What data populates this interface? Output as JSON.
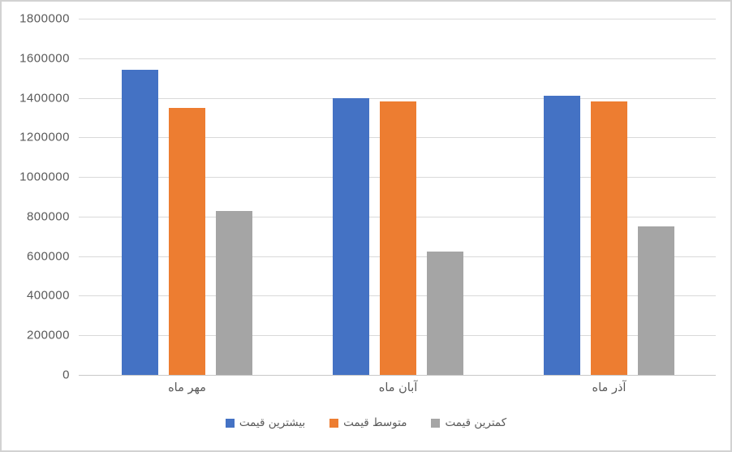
{
  "chart_data": {
    "type": "bar",
    "title": "",
    "categories": [
      "مهر ماه",
      "آبان ماه",
      "آذر ماه"
    ],
    "series": [
      {
        "name": "بیشترین قیمت",
        "color": "#4472C4",
        "values": [
          1540000,
          1400000,
          1410000
        ]
      },
      {
        "name": "متوسط قیمت",
        "color": "#ED7D31",
        "values": [
          1350000,
          1380000,
          1380000
        ]
      },
      {
        "name": "کمترین قیمت",
        "color": "#A5A5A5",
        "values": [
          830000,
          625000,
          750000
        ]
      }
    ],
    "ylim": [
      0,
      1800000
    ],
    "ytick_labels": [
      "0",
      "200000",
      "400000",
      "600000",
      "800000",
      "1000000",
      "1200000",
      "1400000",
      "1600000",
      "1800000"
    ],
    "grid": true,
    "legend_position": "bottom",
    "direction": "rtl",
    "colors": {
      "gridline": "#d9d9d9",
      "axis_text": "#595959",
      "background": "#ffffff",
      "frame_border": "#d2d2d2"
    }
  }
}
